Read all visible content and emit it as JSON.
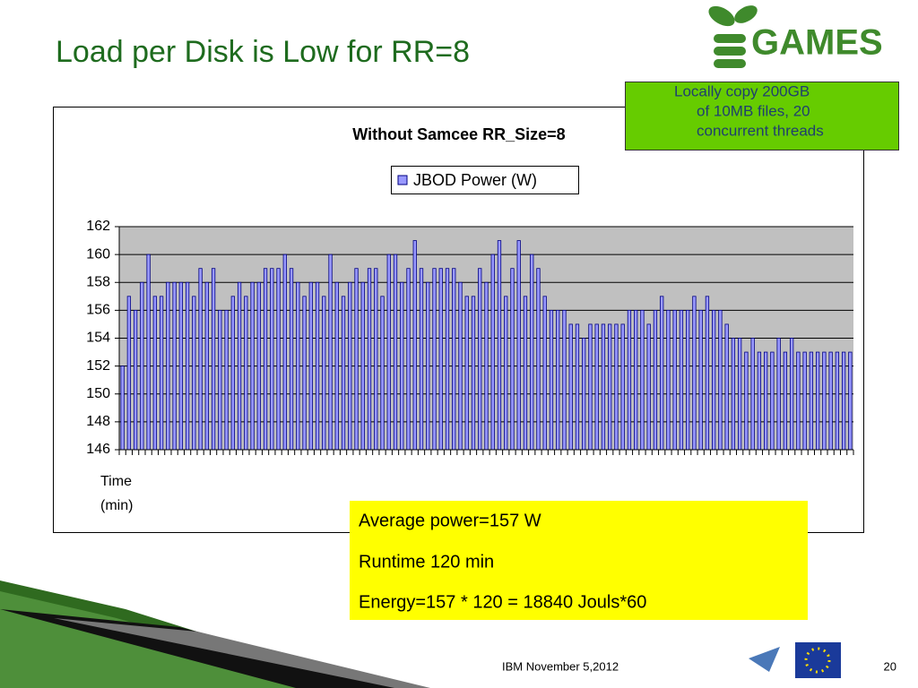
{
  "slide": {
    "title": "Load per Disk is Low for RR=8",
    "logo_text": "GAMES",
    "note_lines": [
      "Locally copy 200GB",
      "of 10MB files, 20",
      "concurrent threads"
    ],
    "summary_lines": [
      "Average power=157 W",
      "Runtime 120 min",
      "Energy=157 * 120 = 18840 Jouls*60"
    ],
    "footer": "IBM November 5,2012",
    "page_number": "20"
  },
  "chart_data": {
    "type": "bar",
    "title": "Without Samcee RR_Size=8",
    "xlabel": [
      "Time",
      "(min)"
    ],
    "categories": [
      null,
      null,
      null,
      null,
      null,
      null,
      null,
      null,
      null,
      null,
      null,
      null,
      null,
      null,
      null,
      null,
      null,
      null,
      null,
      null,
      null,
      null,
      null,
      null,
      null,
      null,
      null,
      null,
      null,
      null,
      null,
      null,
      null,
      null,
      null,
      null,
      null,
      null,
      null,
      null,
      null,
      null,
      null,
      null,
      null,
      null,
      null,
      null,
      null,
      null,
      null,
      null,
      null,
      null,
      null,
      null,
      null,
      null,
      null,
      null,
      null,
      null,
      null,
      null,
      null,
      null,
      null,
      null,
      null,
      null,
      null,
      null,
      null,
      null,
      null,
      null,
      null,
      null,
      null,
      null,
      null,
      null,
      null,
      null,
      null,
      null,
      null,
      null,
      null,
      null,
      null,
      null,
      null,
      null,
      null,
      null,
      null,
      null,
      null,
      null,
      null,
      null,
      null,
      null,
      null,
      null,
      null,
      null,
      null,
      null,
      null,
      null,
      null
    ],
    "series": [
      {
        "name": "JBOD Power (W)",
        "color": "#9999ff",
        "values": [
          152,
          157,
          156,
          158,
          160,
          157,
          157,
          158,
          158,
          158,
          158,
          157,
          159,
          158,
          159,
          156,
          156,
          157,
          158,
          157,
          158,
          158,
          159,
          159,
          159,
          160,
          159,
          158,
          157,
          158,
          158,
          157,
          160,
          158,
          157,
          158,
          159,
          158,
          159,
          159,
          157,
          160,
          160,
          158,
          159,
          161,
          159,
          158,
          159,
          159,
          159,
          159,
          158,
          157,
          157,
          159,
          158,
          160,
          161,
          157,
          159,
          161,
          157,
          160,
          159,
          157,
          156,
          156,
          156,
          155,
          155,
          154,
          155,
          155,
          155,
          155,
          155,
          155,
          156,
          156,
          156,
          155,
          156,
          157,
          156,
          156,
          156,
          156,
          157,
          156,
          157,
          156,
          156,
          155,
          154,
          154,
          153,
          154,
          153,
          153,
          153,
          154,
          153,
          154,
          153,
          153,
          153,
          153,
          153,
          153,
          153,
          153,
          153
        ]
      }
    ],
    "ylim": [
      146,
      162
    ],
    "yticks": [
      146,
      148,
      150,
      152,
      154,
      156,
      158,
      160,
      162
    ],
    "grid": true
  }
}
